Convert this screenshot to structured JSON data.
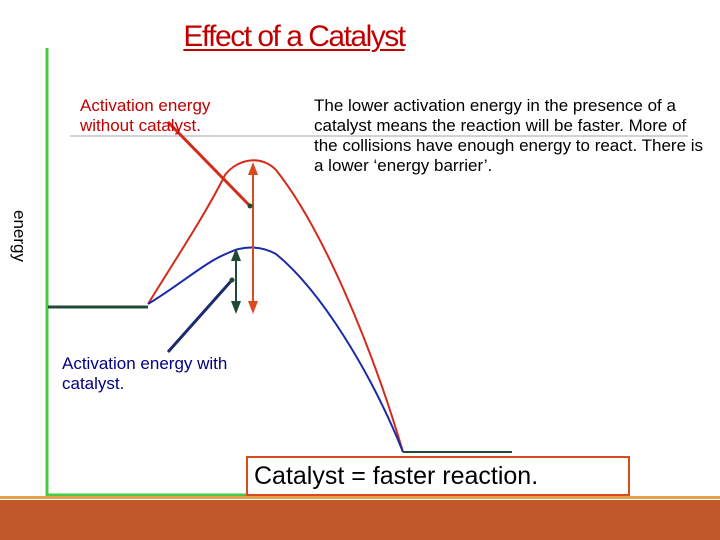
{
  "title": "Effect of a Catalyst",
  "axis": {
    "y_label": "energy"
  },
  "labels": {
    "without_catalyst": "Activation energy without catalyst.",
    "with_catalyst": "Activation energy with catalyst."
  },
  "note": "The lower activation energy in the presence of a catalyst means the reaction will be faster. More of the collisions have enough energy to react. There is a lower ‘energy barrier’.",
  "conclusion": "Catalyst = faster reaction.",
  "colors": {
    "axis": "#44cc44",
    "uncatalysed_curve": "#d42a1a",
    "catalysed_curve": "#1c2aa8",
    "energy_levels": "#1f4a35",
    "without_label": "#c00000",
    "with_label": "#000080",
    "footer": "#c0582b"
  }
}
